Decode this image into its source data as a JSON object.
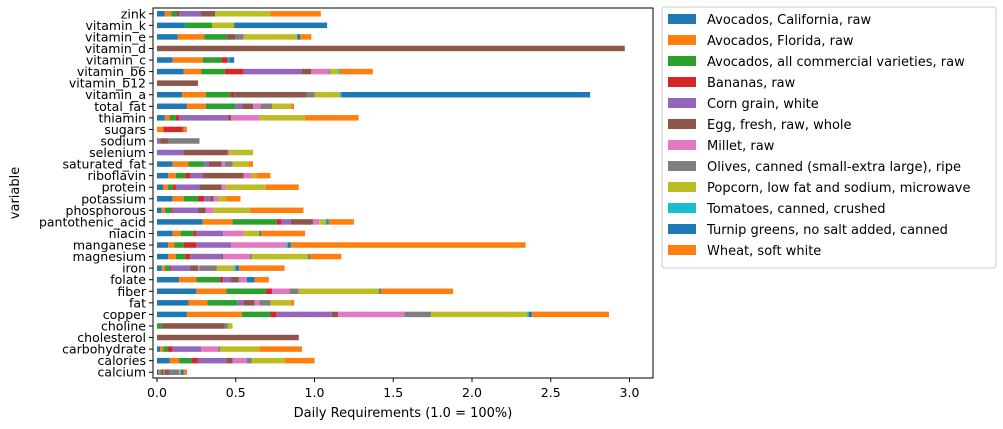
{
  "chart_data": {
    "type": "bar",
    "orientation": "horizontal",
    "stacked": true,
    "xlabel": "Daily Requirements (1.0 = 100%)",
    "ylabel": "variable",
    "xlim": [
      0,
      3.15
    ],
    "xticks": [
      "0.0",
      "0.5",
      "1.0",
      "1.5",
      "2.0",
      "2.5",
      "3.0"
    ],
    "grid": false,
    "legend_position": "outside-right",
    "categories": [
      "calcium",
      "calories",
      "carbohydrate",
      "cholesterol",
      "choline",
      "copper",
      "fat",
      "fiber",
      "folate",
      "iron",
      "magnesium",
      "manganese",
      "niacin",
      "pantothenic_acid",
      "phosphorous",
      "potassium",
      "protein",
      "riboflavin",
      "saturated_fat",
      "selenium",
      "sodium",
      "sugars",
      "thiamin",
      "total_fat",
      "vitamin_a",
      "vitamin_b12",
      "vitamin_b6",
      "vitamin_c",
      "vitamin_d",
      "vitamin_e",
      "vitamin_k",
      "zink"
    ],
    "series": [
      {
        "name": "Avocados, California, raw",
        "color": "#1f77b4",
        "values": [
          0.01,
          0.08,
          0.02,
          0.0,
          0.0,
          0.19,
          0.2,
          0.25,
          0.14,
          0.03,
          0.07,
          0.07,
          0.1,
          0.29,
          0.03,
          0.1,
          0.04,
          0.07,
          0.1,
          0.0,
          0.0,
          0.0,
          0.05,
          0.19,
          0.16,
          0.0,
          0.17,
          0.1,
          0.0,
          0.13,
          0.18,
          0.05
        ]
      },
      {
        "name": "Avocados, Florida, raw",
        "color": "#ff7f0e",
        "values": [
          0.01,
          0.06,
          0.02,
          0.0,
          0.0,
          0.35,
          0.12,
          0.19,
          0.11,
          0.02,
          0.05,
          0.04,
          0.05,
          0.19,
          0.02,
          0.07,
          0.03,
          0.05,
          0.1,
          0.0,
          0.0,
          0.04,
          0.03,
          0.12,
          0.15,
          0.0,
          0.11,
          0.19,
          0.0,
          0.17,
          0.0,
          0.04
        ]
      },
      {
        "name": "Avocados, all commercial varieties, raw",
        "color": "#2ca02c",
        "values": [
          0.01,
          0.08,
          0.03,
          0.0,
          0.03,
          0.18,
          0.19,
          0.25,
          0.15,
          0.03,
          0.06,
          0.06,
          0.08,
          0.28,
          0.04,
          0.09,
          0.03,
          0.06,
          0.1,
          0.0,
          0.0,
          0.0,
          0.04,
          0.19,
          0.16,
          0.0,
          0.15,
          0.12,
          0.0,
          0.14,
          0.17,
          0.04
        ]
      },
      {
        "name": "Bananas, raw",
        "color": "#d62728",
        "values": [
          0.01,
          0.04,
          0.03,
          0.0,
          0.0,
          0.04,
          0.0,
          0.04,
          0.02,
          0.01,
          0.03,
          0.08,
          0.02,
          0.03,
          0.01,
          0.04,
          0.02,
          0.03,
          0.0,
          0.0,
          0.0,
          0.12,
          0.02,
          0.0,
          0.02,
          0.0,
          0.12,
          0.04,
          0.0,
          0.0,
          0.0,
          0.01
        ]
      },
      {
        "name": "Corn grain, white",
        "color": "#9467bd",
        "values": [
          0.01,
          0.18,
          0.18,
          0.0,
          0.0,
          0.35,
          0.04,
          0.0,
          0.05,
          0.12,
          0.2,
          0.22,
          0.17,
          0.06,
          0.16,
          0.04,
          0.15,
          0.08,
          0.03,
          0.17,
          0.02,
          0.0,
          0.31,
          0.04,
          0.0,
          0.0,
          0.37,
          0.0,
          0.0,
          0.0,
          0.0,
          0.14
        ]
      },
      {
        "name": "Egg, fresh, raw, whole",
        "color": "#8c564b",
        "values": [
          0.03,
          0.04,
          0.0,
          0.9,
          0.4,
          0.04,
          0.07,
          0.0,
          0.05,
          0.05,
          0.01,
          0.0,
          0.0,
          0.14,
          0.05,
          0.02,
          0.14,
          0.26,
          0.08,
          0.28,
          0.05,
          0.01,
          0.02,
          0.07,
          0.46,
          0.26,
          0.06,
          0.0,
          2.97,
          0.06,
          0.0,
          0.09
        ]
      },
      {
        "name": "Millet, raw",
        "color": "#e377c2",
        "values": [
          0.0,
          0.09,
          0.11,
          0.0,
          0.0,
          0.42,
          0.03,
          0.11,
          0.05,
          0.01,
          0.17,
          0.35,
          0.13,
          0.04,
          0.05,
          0.03,
          0.03,
          0.05,
          0.02,
          0.01,
          0.0,
          0.0,
          0.18,
          0.05,
          0.0,
          0.0,
          0.11,
          0.0,
          0.0,
          0.0,
          0.0,
          0.0
        ]
      },
      {
        "name": "Olives, canned (small-extra large), ripe",
        "color": "#7f7f7f",
        "values": [
          0.06,
          0.03,
          0.01,
          0.0,
          0.02,
          0.17,
          0.07,
          0.06,
          0.0,
          0.11,
          0.01,
          0.0,
          0.0,
          0.0,
          0.0,
          0.0,
          0.0,
          0.0,
          0.05,
          0.0,
          0.2,
          0.0,
          0.0,
          0.07,
          0.05,
          0.0,
          0.01,
          0.0,
          0.0,
          0.05,
          0.0,
          0.0
        ]
      },
      {
        "name": "Popcorn, low fat and sodium, microwave",
        "color": "#bcbd22",
        "values": [
          0.01,
          0.21,
          0.25,
          0.0,
          0.03,
          0.61,
          0.13,
          0.51,
          0.0,
          0.11,
          0.36,
          0.0,
          0.1,
          0.04,
          0.23,
          0.05,
          0.25,
          0.03,
          0.1,
          0.15,
          0.0,
          0.0,
          0.29,
          0.12,
          0.16,
          0.0,
          0.05,
          0.0,
          0.0,
          0.34,
          0.14,
          0.35
        ]
      },
      {
        "name": "Tomatoes, canned, crushed",
        "color": "#17becf",
        "values": [
          0.0,
          0.0,
          0.0,
          0.0,
          0.0,
          0.01,
          0.0,
          0.0,
          0.0,
          0.01,
          0.0,
          0.01,
          0.0,
          0.01,
          0.0,
          0.0,
          0.0,
          0.0,
          0.0,
          0.0,
          0.0,
          0.0,
          0.0,
          0.0,
          0.01,
          0.0,
          0.01,
          0.01,
          0.0,
          0.0,
          0.0,
          0.0
        ]
      },
      {
        "name": "Turnip greens, no salt added, canned",
        "color": "#1f77b4",
        "values": [
          0.02,
          0.0,
          0.0,
          0.0,
          0.0,
          0.02,
          0.0,
          0.01,
          0.05,
          0.02,
          0.01,
          0.02,
          0.01,
          0.01,
          0.0,
          0.0,
          0.0,
          0.0,
          0.0,
          0.0,
          0.0,
          0.0,
          0.0,
          0.0,
          1.58,
          0.0,
          0.0,
          0.03,
          0.0,
          0.02,
          0.59,
          0.0
        ]
      },
      {
        "name": "Wheat, soft white",
        "color": "#ff7f0e",
        "values": [
          0.02,
          0.19,
          0.27,
          0.0,
          0.0,
          0.49,
          0.02,
          0.46,
          0.09,
          0.29,
          0.2,
          1.49,
          0.28,
          0.16,
          0.34,
          0.09,
          0.21,
          0.09,
          0.03,
          0.0,
          0.0,
          0.02,
          0.34,
          0.02,
          0.0,
          0.0,
          0.21,
          0.0,
          0.0,
          0.07,
          0.0,
          0.32
        ]
      }
    ]
  }
}
